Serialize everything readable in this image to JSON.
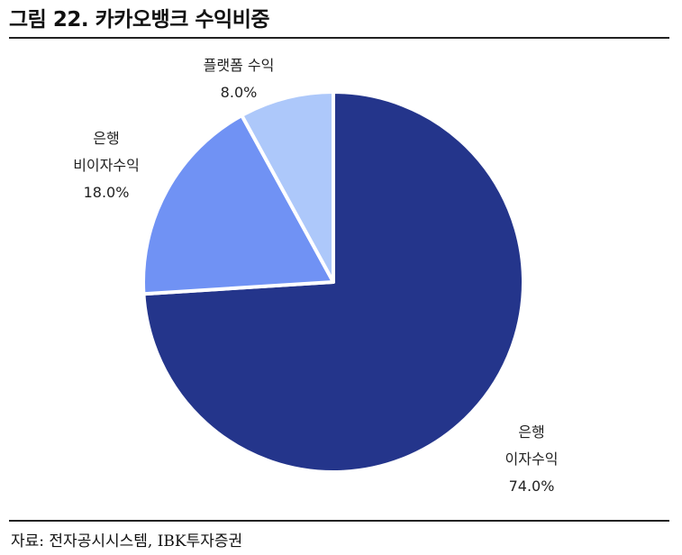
{
  "figure": {
    "title": "그림 22. 카카오뱅크 수익비중",
    "source": "자료: 전자공시시스템, IBK투자증권"
  },
  "chart_data": {
    "type": "pie",
    "title": "카카오뱅크 수익비중",
    "start": "12 o'clock",
    "direction": "clockwise",
    "slices": [
      {
        "label_lines": [
          "은행",
          "이자수익"
        ],
        "value": 74.0,
        "value_label": "74.0%",
        "color": "#24358b"
      },
      {
        "label_lines": [
          "은행",
          "비이자수익"
        ],
        "value": 18.0,
        "value_label": "18.0%",
        "color": "#7092f4"
      },
      {
        "label_lines": [
          "플랫폼 수익"
        ],
        "value": 8.0,
        "value_label": "8.0%",
        "color": "#adc8fa"
      }
    ],
    "slice_border_color": "#ffffff"
  }
}
